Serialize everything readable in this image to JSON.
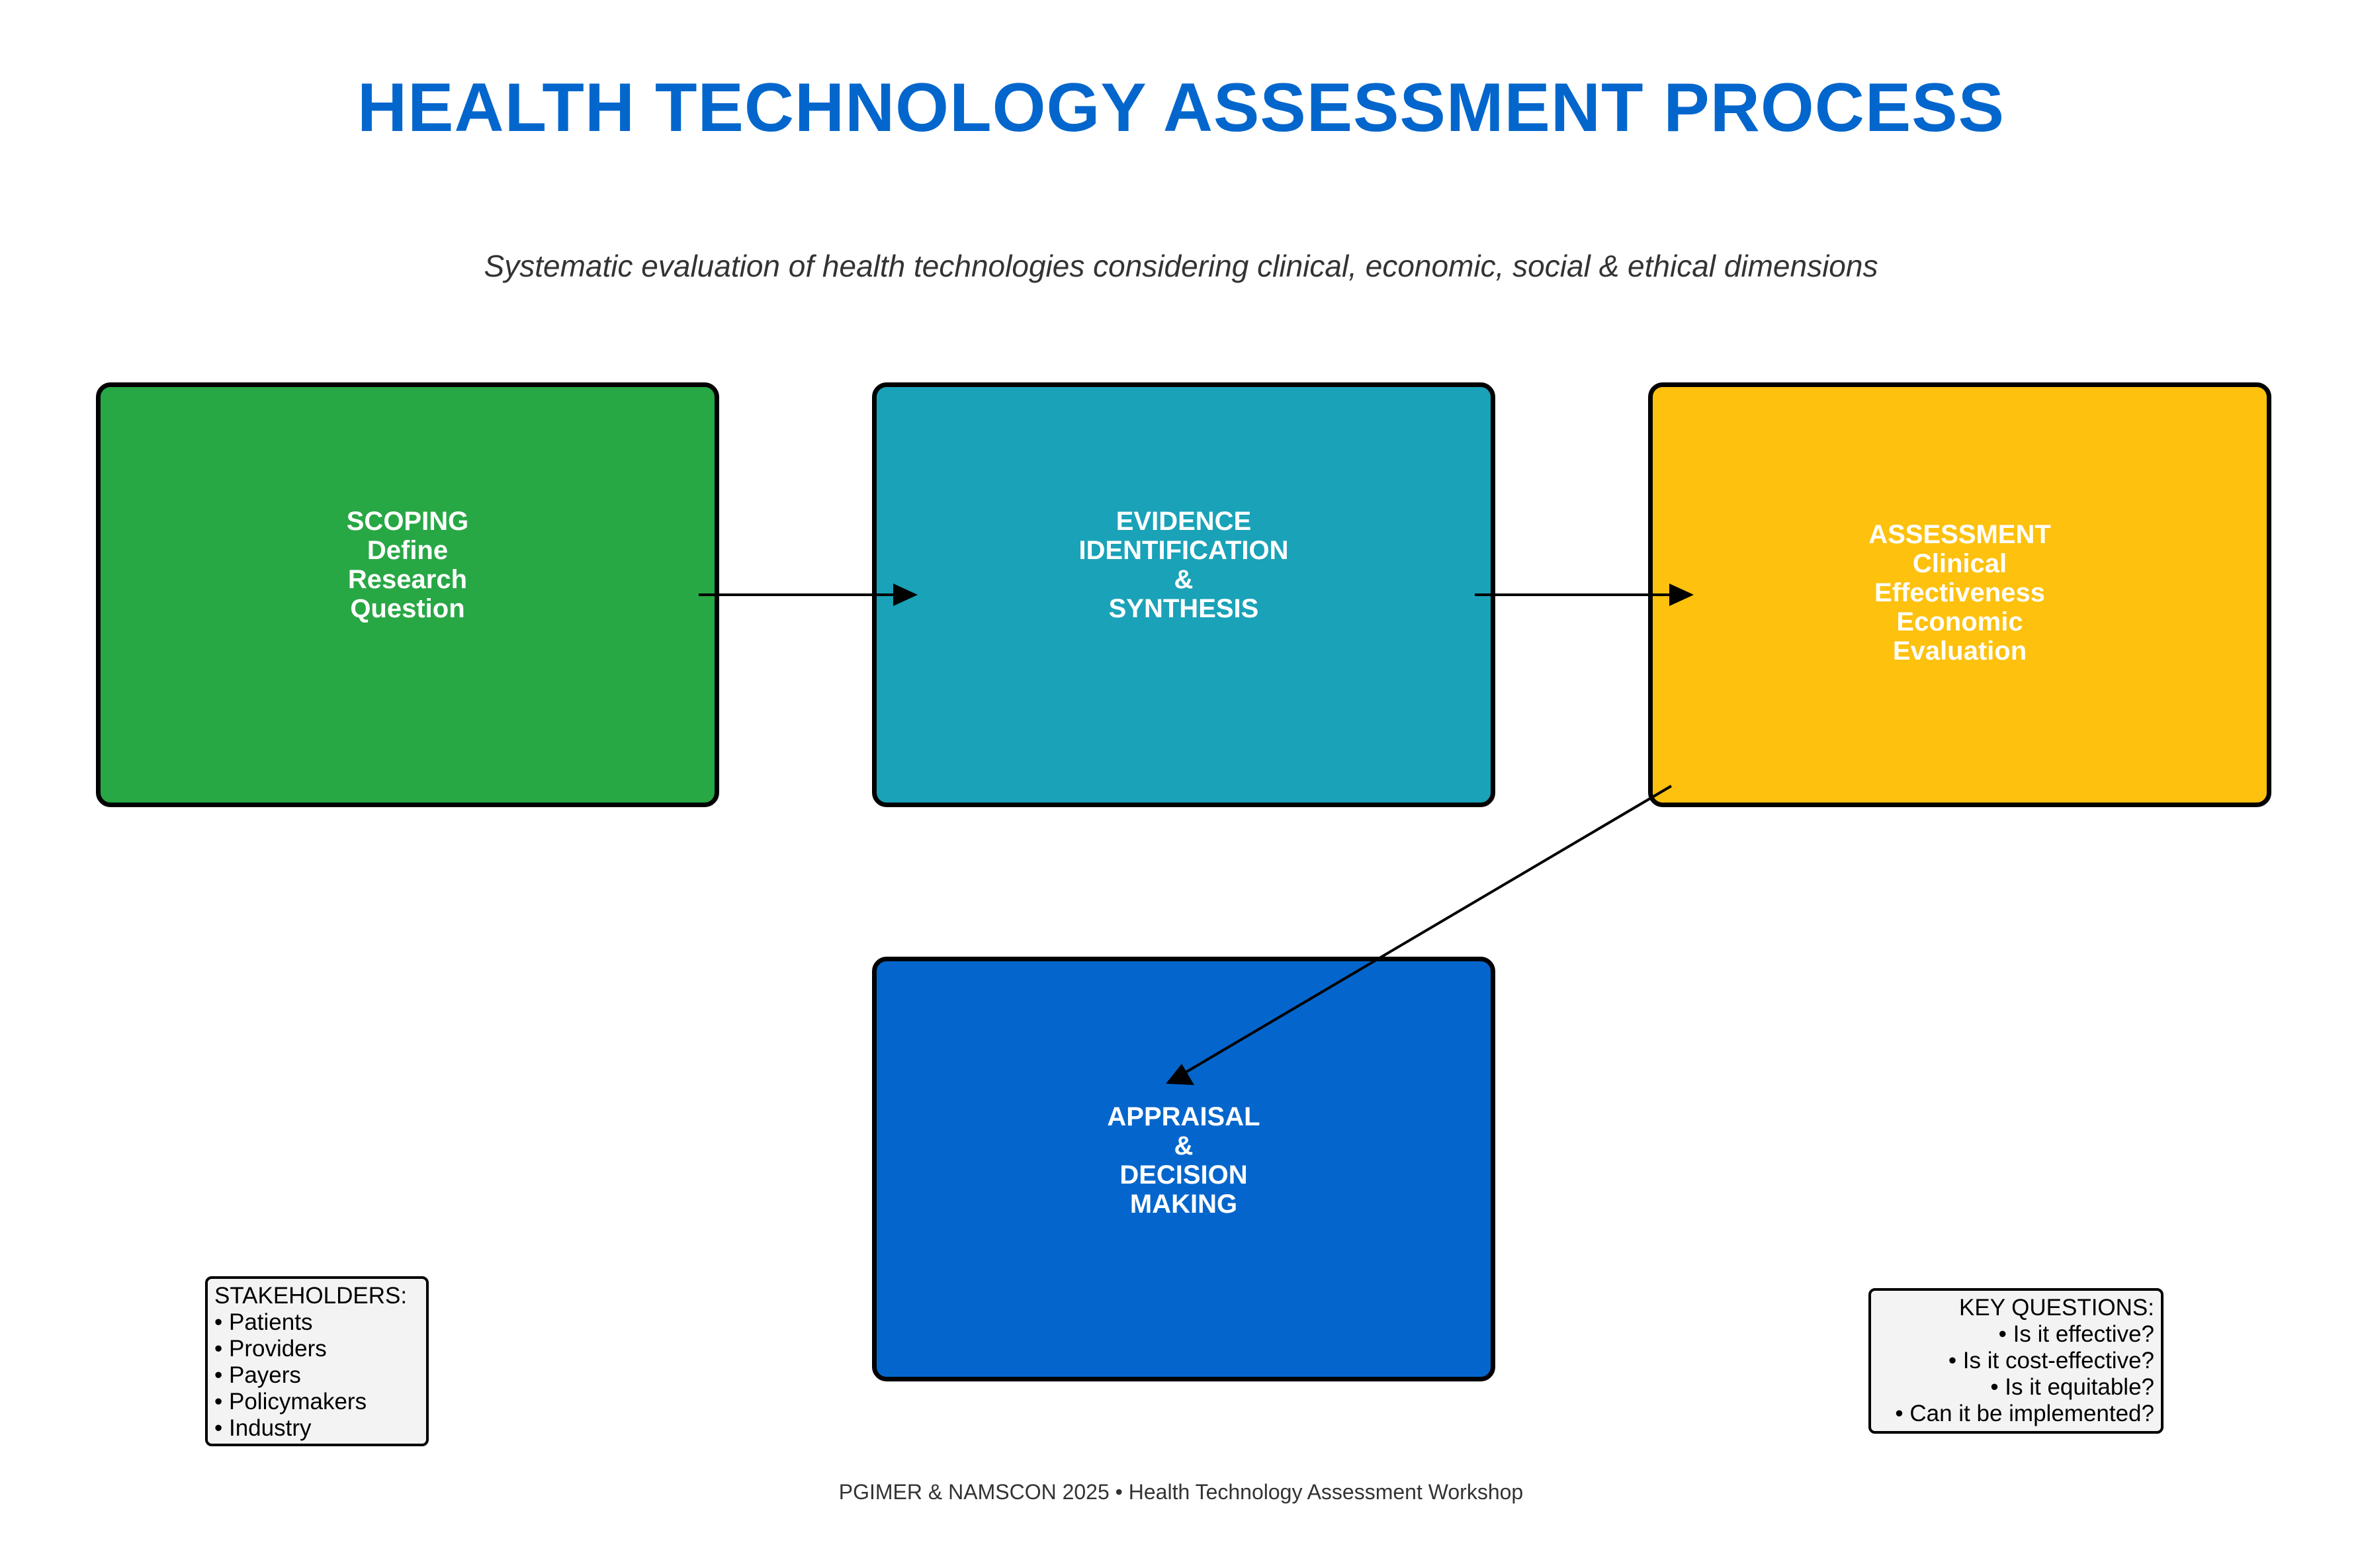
{
  "header": {
    "title": "HEALTH TECHNOLOGY ASSESSMENT PROCESS",
    "subtitle": "Systematic evaluation of health technologies considering clinical, economic, social & ethical dimensions"
  },
  "steps": [
    {
      "label": "SCOPING\nDefine\nResearch\nQuestion",
      "color": "#28a745"
    },
    {
      "label": "EVIDENCE\nIDENTIFICATION\n&\nSYNTHESIS",
      "color": "#1aa2b8"
    },
    {
      "label": "ASSESSMENT\nClinical\nEffectiveness\nEconomic\nEvaluation",
      "color": "#fdc10e"
    },
    {
      "label": "APPRAISAL\n&\nDECISION\nMAKING",
      "color": "#0466cc"
    }
  ],
  "stakeholders": {
    "heading": "STAKEHOLDERS:",
    "items": [
      "• Patients",
      "• Providers",
      "• Payers",
      "• Policymakers",
      "• Industry"
    ]
  },
  "key_questions": {
    "heading": "KEY QUESTIONS:",
    "items": [
      "• Is it effective?",
      "• Is it cost-effective?",
      "• Is it equitable?",
      "• Can it be implemented?"
    ]
  },
  "footer": {
    "text": "PGIMER & NAMSCON 2025 • Health Technology Assessment Workshop"
  },
  "colors": {
    "title": "#0366cc",
    "box_border": "#000000",
    "arrow": "#000000",
    "note_background": "#f3f3f3"
  }
}
